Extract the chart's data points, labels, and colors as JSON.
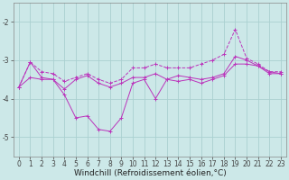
{
  "x": [
    0,
    1,
    2,
    3,
    4,
    5,
    6,
    7,
    8,
    9,
    10,
    11,
    12,
    13,
    14,
    15,
    16,
    17,
    18,
    19,
    20,
    21,
    22,
    23
  ],
  "line_top": [
    -3.7,
    -3.05,
    -3.3,
    -3.35,
    -3.55,
    -3.45,
    -3.35,
    -3.5,
    -3.6,
    -3.5,
    -3.2,
    -3.2,
    -3.1,
    -3.2,
    -3.2,
    -3.2,
    -3.1,
    -3.0,
    -2.85,
    -2.2,
    -2.95,
    -3.1,
    -3.3,
    -3.3
  ],
  "line_mid": [
    -3.7,
    -3.05,
    -3.45,
    -3.5,
    -3.75,
    -3.5,
    -3.4,
    -3.6,
    -3.7,
    -3.6,
    -3.45,
    -3.45,
    -3.35,
    -3.5,
    -3.4,
    -3.45,
    -3.5,
    -3.45,
    -3.35,
    -2.9,
    -3.0,
    -3.15,
    -3.35,
    -3.35
  ],
  "line_bot": [
    -3.7,
    -3.45,
    -3.5,
    -3.5,
    -3.9,
    -4.5,
    -4.45,
    -4.8,
    -4.85,
    -4.5,
    -3.6,
    -3.5,
    -4.0,
    -3.5,
    -3.55,
    -3.5,
    -3.6,
    -3.5,
    -3.4,
    -3.1,
    -3.1,
    -3.15,
    -3.3,
    -3.35
  ],
  "background_color": "#cce8e8",
  "grid_color": "#aad0d0",
  "line_color": "#bb33bb",
  "xlabel": "Windchill (Refroidissement éolien,°C)",
  "ylim": [
    -5.5,
    -1.5
  ],
  "xlim": [
    -0.5,
    23.5
  ],
  "yticks": [
    -5,
    -4,
    -3,
    -2
  ],
  "xlabel_fontsize": 6.5,
  "tick_fontsize": 5.5
}
